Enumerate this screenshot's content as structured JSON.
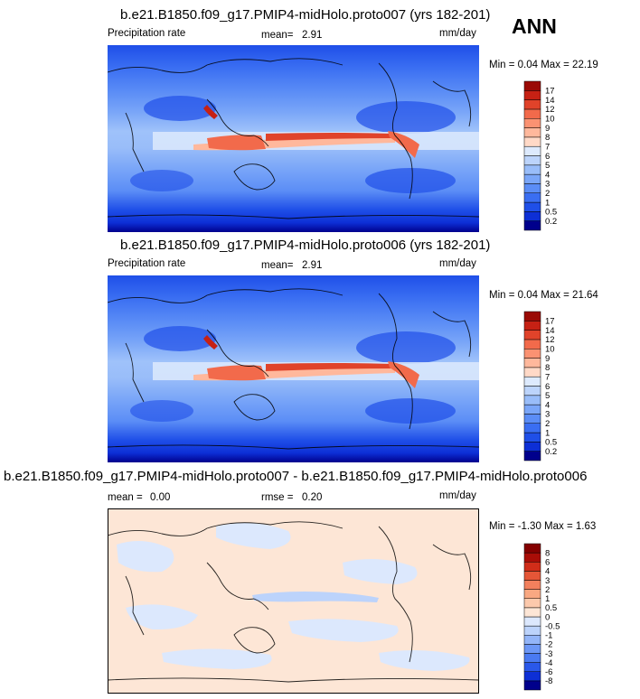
{
  "season": "ANN",
  "panels": [
    {
      "title": "b.e21.B1850.f09_g17.PMIP4-midHolo.proto007 (yrs 182-201)",
      "variable": "Precipitation rate",
      "stat_label": "mean=",
      "stat_value": "2.91",
      "units": "mm/day",
      "minmax": "Min =  0.04 Max =  22.19"
    },
    {
      "title": "b.e21.B1850.f09_g17.PMIP4-midHolo.proto006 (yrs 182-201)",
      "variable": "Precipitation rate",
      "stat_label": "mean=",
      "stat_value": "2.91",
      "units": "mm/day",
      "minmax": "Min =  0.04 Max =  21.64"
    },
    {
      "title": "b.e21.B1850.f09_g17.PMIP4-midHolo.proto007 - b.e21.B1850.f09_g17.PMIP4-midHolo.proto006",
      "mean_label": "mean =",
      "mean_value": "0.00",
      "rmse_label": "rmse =",
      "rmse_value": "0.20",
      "units": "mm/day",
      "minmax": "Min = -1.30 Max =  1.63"
    }
  ],
  "chart_data": [
    {
      "type": "heatmap",
      "title": "b.e21.B1850.f09_g17.PMIP4-midHolo.proto007 (yrs 182-201)",
      "units": "mm/day",
      "mean": 2.91,
      "min": 0.04,
      "max": 22.19,
      "levels": [
        "0.2",
        "0.5",
        "1",
        "2",
        "3",
        "4",
        "5",
        "6",
        "7",
        "8",
        "9",
        "10",
        "12",
        "14",
        "17"
      ],
      "colors": [
        "#00008c",
        "#0d2fd6",
        "#1f4fe8",
        "#3a6ef2",
        "#5b8df6",
        "#7aa6f8",
        "#99bdf9",
        "#bcd4fb",
        "#ddeafd",
        "#ffd9c7",
        "#ffb89c",
        "#fb9272",
        "#f26a4b",
        "#e0432a",
        "#c62114",
        "#9a0a05"
      ]
    },
    {
      "type": "heatmap",
      "title": "b.e21.B1850.f09_g17.PMIP4-midHolo.proto006 (yrs 182-201)",
      "units": "mm/day",
      "mean": 2.91,
      "min": 0.04,
      "max": 21.64,
      "levels": [
        "0.2",
        "0.5",
        "1",
        "2",
        "3",
        "4",
        "5",
        "6",
        "7",
        "8",
        "9",
        "10",
        "12",
        "14",
        "17"
      ],
      "colors": [
        "#00008c",
        "#0d2fd6",
        "#1f4fe8",
        "#3a6ef2",
        "#5b8df6",
        "#7aa6f8",
        "#99bdf9",
        "#bcd4fb",
        "#ddeafd",
        "#ffd9c7",
        "#ffb89c",
        "#fb9272",
        "#f26a4b",
        "#e0432a",
        "#c62114",
        "#9a0a05"
      ]
    },
    {
      "type": "heatmap",
      "title": "b.e21.B1850.f09_g17.PMIP4-midHolo.proto007 - b.e21.B1850.f09_g17.PMIP4-midHolo.proto006",
      "units": "mm/day",
      "mean": 0.0,
      "rmse": 0.2,
      "min": -1.3,
      "max": 1.63,
      "levels": [
        "-8",
        "-6",
        "-4",
        "-3",
        "-2",
        "-1",
        "-0.5",
        "0",
        "0.5",
        "1",
        "2",
        "3",
        "4",
        "6",
        "8"
      ],
      "colors": [
        "#00008c",
        "#0d2fd6",
        "#2a58ea",
        "#4a7af2",
        "#6c97f6",
        "#93b5f8",
        "#bcd3fb",
        "#dce8fd",
        "#fde6d6",
        "#fcc9ac",
        "#f9a882",
        "#f2805d",
        "#e55637",
        "#d02d19",
        "#a90d07",
        "#840000"
      ]
    }
  ]
}
